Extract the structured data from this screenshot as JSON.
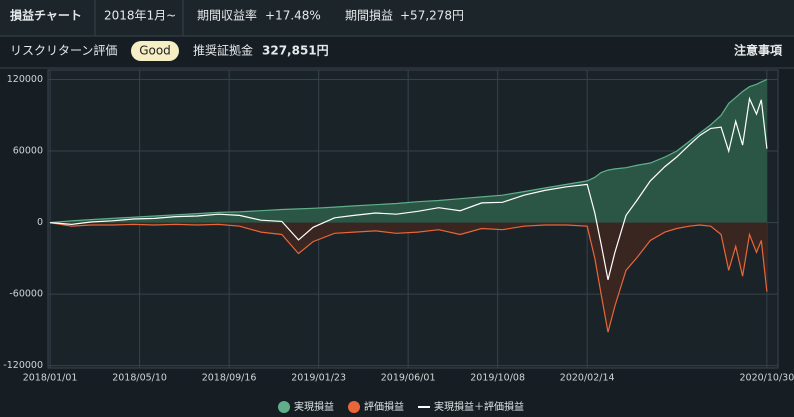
{
  "header": {
    "title": "損益チャート",
    "period": "2018年1月~",
    "return_label": "期間収益率",
    "return_value": "+17.48%",
    "profit_label": "期間損益",
    "profit_value": "+57,278円",
    "risk_label": "リスクリターン評価",
    "risk_badge": "Good",
    "margin_label": "推奨証拠金",
    "margin_value": "327,851円",
    "notice": "注意事項"
  },
  "chart_data": {
    "type": "area-line",
    "x": [
      "2018/01/01",
      "2018/02/01",
      "2018/03/01",
      "2018/04/01",
      "2018/05/01",
      "2018/06/01",
      "2018/07/01",
      "2018/08/01",
      "2018/09/01",
      "2018/10/01",
      "2018/11/01",
      "2018/12/01",
      "2018/12/25",
      "2019/01/15",
      "2019/02/15",
      "2019/03/15",
      "2019/04/15",
      "2019/05/15",
      "2019/06/15",
      "2019/07/15",
      "2019/08/15",
      "2019/09/15",
      "2019/10/15",
      "2019/11/15",
      "2019/12/15",
      "2020/01/15",
      "2020/02/14",
      "2020/02/25",
      "2020/03/05",
      "2020/03/15",
      "2020/03/25",
      "2020/04/10",
      "2020/04/25",
      "2020/05/15",
      "2020/06/05",
      "2020/06/22",
      "2020/07/10",
      "2020/07/25",
      "2020/08/10",
      "2020/08/25",
      "2020/09/05",
      "2020/09/15",
      "2020/09/25",
      "2020/10/05",
      "2020/10/15",
      "2020/10/22",
      "2020/10/30"
    ],
    "series": [
      {
        "name": "実現損益",
        "color": "#5fb08a",
        "fill_color": "#2b5646",
        "area": true,
        "values": [
          0,
          1500,
          2500,
          3500,
          4500,
          5500,
          6500,
          7500,
          8500,
          9000,
          10000,
          11000,
          11500,
          12000,
          13000,
          14000,
          15000,
          16000,
          17500,
          18500,
          20000,
          21500,
          23000,
          26000,
          29000,
          32000,
          35000,
          38000,
          42000,
          44000,
          45000,
          46000,
          48000,
          50000,
          55000,
          60000,
          68000,
          75000,
          82000,
          90000,
          100000,
          105000,
          110000,
          114000,
          116000,
          118000,
          120000
        ]
      },
      {
        "name": "評価損益",
        "color": "#e8663a",
        "fill_color": "#3a2620",
        "area": true,
        "values": [
          0,
          -3000,
          -2000,
          -2000,
          -1500,
          -2000,
          -1500,
          -2000,
          -1500,
          -3000,
          -8000,
          -10000,
          -26000,
          -16000,
          -9000,
          -8000,
          -7000,
          -9000,
          -8000,
          -6000,
          -10000,
          -5000,
          -6000,
          -3000,
          -2000,
          -2000,
          -3000,
          -30000,
          -60000,
          -92000,
          -70000,
          -40000,
          -30000,
          -15000,
          -8000,
          -5000,
          -3000,
          -2000,
          -3000,
          -10000,
          -40000,
          -20000,
          -45000,
          -10000,
          -25000,
          -15000,
          -58000
        ]
      },
      {
        "name": "実現損益＋評価損益",
        "color": "#ffffff",
        "area": false,
        "values": [
          0,
          -1500,
          500,
          1500,
          3000,
          3500,
          5000,
          5500,
          7000,
          6000,
          2000,
          1000,
          -14500,
          -4000,
          4000,
          6000,
          8000,
          7000,
          9500,
          12500,
          10000,
          16500,
          17000,
          23000,
          27000,
          30000,
          32000,
          8000,
          -18000,
          -48000,
          -25000,
          6000,
          18000,
          35000,
          47000,
          55000,
          65000,
          73000,
          79000,
          80000,
          60000,
          85000,
          65000,
          104000,
          91000,
          103000,
          62000
        ]
      }
    ],
    "xlim": [
      "2017/12/29",
      "2020/11/15"
    ],
    "xticks": [
      "2018/01/01",
      "2018/05/10",
      "2018/09/16",
      "2019/01/23",
      "2019/06/01",
      "2019/10/08",
      "2020/02/14",
      "2020/10/30"
    ],
    "ylim": [
      -122000,
      128000
    ],
    "yticks": [
      120000,
      60000,
      0,
      -60000,
      -120000
    ],
    "grid": true
  }
}
